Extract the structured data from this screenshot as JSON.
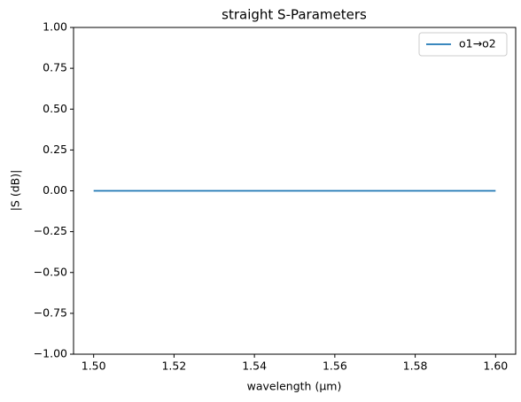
{
  "chart_data": {
    "type": "line",
    "title": "straight S-Parameters",
    "x_label": "wavelength (µm)",
    "y_label": "|S (dB)|",
    "x": [
      1.5,
      1.51,
      1.52,
      1.53,
      1.54,
      1.55,
      1.56,
      1.57,
      1.58,
      1.59,
      1.6
    ],
    "series": [
      {
        "name": "o1→o2",
        "color": "#1f77b4",
        "values": [
          0,
          0,
          0,
          0,
          0,
          0,
          0,
          0,
          0,
          0,
          0
        ]
      }
    ],
    "xlim": [
      1.495,
      1.605
    ],
    "xticks": [
      {
        "value": 1.5,
        "label": "1.50"
      },
      {
        "value": 1.52,
        "label": "1.52"
      },
      {
        "value": 1.54,
        "label": "1.54"
      },
      {
        "value": 1.56,
        "label": "1.56"
      },
      {
        "value": 1.58,
        "label": "1.58"
      },
      {
        "value": 1.6,
        "label": "1.60"
      }
    ],
    "ylim": [
      -1,
      1
    ],
    "yticks": [
      {
        "value": -1,
        "label": "−1.00"
      },
      {
        "value": -0.75,
        "label": "−0.75"
      },
      {
        "value": -0.5,
        "label": "−0.50"
      },
      {
        "value": -0.25,
        "label": "−0.25"
      },
      {
        "value": 0,
        "label": "0.00"
      },
      {
        "value": 0.25,
        "label": "0.25"
      },
      {
        "value": 0.5,
        "label": "0.50"
      },
      {
        "value": 0.75,
        "label": "0.75"
      },
      {
        "value": 1,
        "label": "1.00"
      }
    ],
    "grid": false,
    "legend": "upper-right"
  }
}
